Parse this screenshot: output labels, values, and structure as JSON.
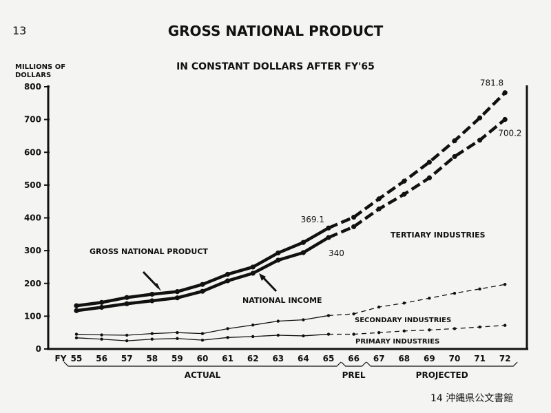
{
  "page_number": "13",
  "footer_text": "14 沖縄県公文書館",
  "chart_data": {
    "type": "line",
    "title": "GROSS NATIONAL PRODUCT",
    "subtitle": "IN CONSTANT DOLLARS AFTER FY'65",
    "ylabel_line1": "MILLIONS OF",
    "ylabel_line2": "DOLLARS",
    "x_axis_prefix": "FY",
    "ylim": [
      0,
      800
    ],
    "yticks": [
      "0",
      "100",
      "200",
      "300",
      "400",
      "500",
      "600",
      "700",
      "800"
    ],
    "categories": [
      "55",
      "56",
      "57",
      "58",
      "59",
      "60",
      "61",
      "62",
      "63",
      "64",
      "65",
      "66",
      "67",
      "68",
      "69",
      "70",
      "71",
      "72"
    ],
    "periods": [
      {
        "label": "ACTUAL",
        "from": "55",
        "to": "65"
      },
      {
        "label": "PREL",
        "from": "66",
        "to": "66"
      },
      {
        "label": "PROJECTED",
        "from": "67",
        "to": "72"
      }
    ],
    "series": [
      {
        "name": "GROSS NATIONAL PRODUCT",
        "weight": "heavy",
        "values": [
          132,
          142,
          157,
          167,
          175,
          197,
          228,
          250,
          293,
          325,
          369.1,
          402,
          458,
          512,
          570,
          635,
          705,
          781.8
        ]
      },
      {
        "name": "NATIONAL INCOME",
        "weight": "heavy",
        "values": [
          117,
          127,
          138,
          147,
          156,
          176,
          208,
          231,
          271,
          294,
          340,
          373,
          427,
          472,
          522,
          587,
          637,
          700.2
        ]
      },
      {
        "name": "SECONDARY INDUSTRIES",
        "weight": "light",
        "values": [
          45,
          43,
          42,
          47,
          50,
          47,
          62,
          73,
          85,
          89,
          102,
          107,
          128,
          140,
          155,
          170,
          183,
          197
        ]
      },
      {
        "name": "PRIMARY INDUSTRIES",
        "weight": "light",
        "values": [
          34,
          30,
          25,
          30,
          32,
          27,
          35,
          38,
          42,
          40,
          45,
          45,
          50,
          55,
          58,
          62,
          67,
          72
        ]
      }
    ],
    "data_labels": [
      {
        "text": "369.1",
        "series": 0,
        "category": "65"
      },
      {
        "text": "340",
        "series": 1,
        "category": "65"
      },
      {
        "text": "781.8",
        "series": 0,
        "category": "72"
      },
      {
        "text": "700.2",
        "series": 1,
        "category": "72"
      }
    ],
    "annotations": {
      "tertiary": "TERTIARY INDUSTRIES",
      "gnp": "GROSS NATIONAL PRODUCT",
      "ni": "NATIONAL INCOME",
      "secondary": "SECONDARY INDUSTRIES",
      "primary": "PRIMARY INDUSTRIES"
    }
  }
}
